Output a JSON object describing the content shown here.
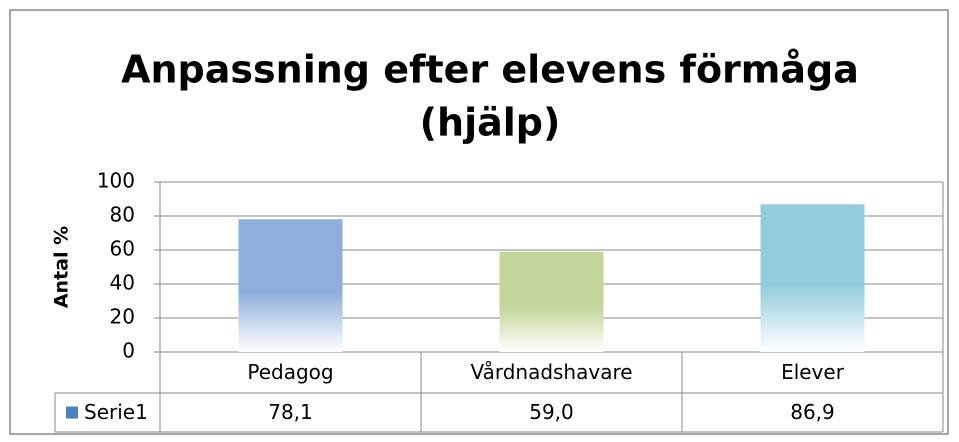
{
  "chart_data": {
    "type": "bar",
    "title": [
      "Anpassning efter elevens förmåga",
      "(hjälp)"
    ],
    "y_label": "Antal %",
    "categories": [
      "Pedagog",
      "Vårdnadshavare",
      "Elever"
    ],
    "series": [
      {
        "name": "Serie1",
        "color": "#4f81bd",
        "values": [
          78.1,
          59.0,
          86.9
        ],
        "value_labels": [
          "78,1",
          "59,0",
          "86,9"
        ],
        "colors": [
          "#8eaedb",
          "#c3d69b",
          "#93cddd"
        ]
      }
    ],
    "ylim": [
      0,
      100
    ],
    "yticks": [
      0,
      20,
      40,
      60,
      80,
      100
    ],
    "grid": true
  }
}
